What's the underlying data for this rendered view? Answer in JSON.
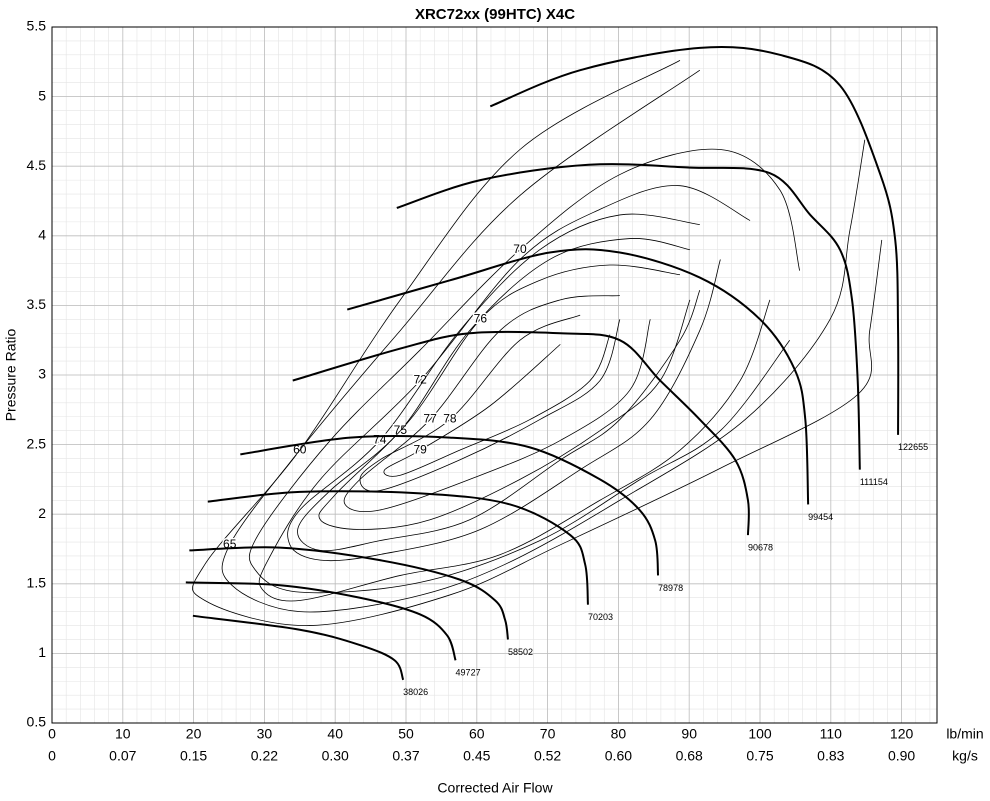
{
  "chart_data": {
    "type": "line",
    "title": "XRC72xx (99HTC) X4C",
    "x_label": "Corrected Air Flow",
    "y_label": "Pressure Ratio",
    "x_unit": "lb/min",
    "x2_unit": "kg/s",
    "xlim": [
      0,
      125
    ],
    "ylim": [
      0.5,
      5.5
    ],
    "xticks": [
      0,
      10,
      20,
      30,
      40,
      50,
      60,
      70,
      80,
      90,
      100,
      110,
      120
    ],
    "x2ticks": [
      0,
      0.07,
      0.15,
      0.22,
      {
        "value": 0.3,
        "label": "0.30"
      },
      0.37,
      0.45,
      0.52,
      {
        "value": 0.6,
        "label": "0.60"
      },
      0.68,
      0.75,
      0.83,
      {
        "value": 0.9,
        "label": "0.90"
      }
    ],
    "yticks": [
      0.5,
      1,
      1.5,
      2,
      2.5,
      3,
      3.5,
      4,
      4.5,
      5,
      5.5
    ],
    "grid": true,
    "minor_step": {
      "x": 2,
      "y": 0.1
    },
    "speed_line_width": 2,
    "contour_line_width": 0.8,
    "color": "#000000",
    "speed_lines": [
      {
        "name": "38026",
        "x": [
          19.9,
          35,
          43.5,
          48.4,
          49.6
        ],
        "y": [
          1.27,
          1.17,
          1.06,
          0.95,
          0.81
        ]
      },
      {
        "name": "49727",
        "x": [
          18.9,
          32.2,
          43.5,
          52,
          55.8,
          57
        ],
        "y": [
          1.51,
          1.49,
          1.4,
          1.28,
          1.13,
          0.95
        ]
      },
      {
        "name": "58502",
        "x": [
          19.4,
          32.2,
          46.3,
          57.6,
          62.6,
          64,
          64.4
        ],
        "y": [
          1.74,
          1.76,
          1.67,
          1.53,
          1.38,
          1.24,
          1.1
        ]
      },
      {
        "name": "70203",
        "x": [
          22,
          35,
          52,
          64.7,
          73.2,
          75.3,
          75.7
        ],
        "y": [
          2.09,
          2.16,
          2.15,
          2.07,
          1.85,
          1.64,
          1.35
        ]
      },
      {
        "name": "78978",
        "x": [
          26.6,
          42.1,
          56.2,
          67.5,
          77.4,
          83,
          85.2,
          85.6
        ],
        "y": [
          2.43,
          2.55,
          2.55,
          2.48,
          2.25,
          2.03,
          1.81,
          1.56
        ]
      },
      {
        "name": "90678",
        "x": [
          34,
          49.2,
          59,
          71.8,
          80.2,
          85.9,
          91.5,
          96.5,
          98.3,
          98.3
        ],
        "y": [
          2.96,
          3.19,
          3.3,
          3.3,
          3.25,
          2.96,
          2.68,
          2.39,
          2.1,
          1.85
        ]
      },
      {
        "name": "99454",
        "x": [
          41.7,
          56.2,
          70.3,
          80.2,
          91.5,
          100,
          104.9,
          106.4,
          106.8
        ],
        "y": [
          3.47,
          3.68,
          3.88,
          3.88,
          3.7,
          3.4,
          3.04,
          2.68,
          2.07
        ]
      },
      {
        "name": "111154",
        "x": [
          48.7,
          60.5,
          75.8,
          90.1,
          101.4,
          107.1,
          111.3,
          113,
          113.8,
          114.1
        ],
        "y": [
          4.2,
          4.4,
          4.51,
          4.49,
          4.45,
          4.15,
          3.9,
          3.54,
          2.96,
          2.32
        ]
      },
      {
        "name": "122655",
        "x": [
          61.9,
          74.6,
          91.5,
          102.8,
          111.3,
          117,
          119.1,
          119.5,
          119.5
        ],
        "y": [
          4.93,
          5.19,
          5.35,
          5.3,
          5.08,
          4.44,
          3.97,
          3.32,
          2.57
        ]
      }
    ],
    "efficiency_contours": [
      {
        "name": "60",
        "x": [
          117.2,
          115.5,
          113.8,
          94.4,
          71.8,
          56.2,
          36.4,
          21.6,
          21.6,
          35,
          49.2,
          66.1,
          88.7
        ],
        "y": [
          3.97,
          3.32,
          2.86,
          2.33,
          1.78,
          1.42,
          1.2,
          1.38,
          1.64,
          2.46,
          3.54,
          4.62,
          5.26
        ]
      },
      {
        "name": "65",
        "x": [
          114.8,
          112.7,
          109.9,
          97.9,
          80.2,
          64,
          50.6,
          35,
          25.4,
          25.1,
          35,
          49.2,
          66.1,
          91.5
        ],
        "y": [
          4.69,
          4.04,
          3.4,
          2.68,
          2.1,
          1.64,
          1.4,
          1.3,
          1.49,
          1.78,
          2.46,
          3.32,
          4.29,
          5.19
        ]
      },
      {
        "name": "70",
        "x": [
          104.2,
          94.4,
          83.1,
          68.9,
          52,
          35,
          28.7,
          29.1,
          39.3,
          52,
          66.1,
          80.2,
          94.4,
          102.8,
          105.6
        ],
        "y": [
          3.25,
          2.6,
          2.25,
          1.81,
          1.51,
          1.44,
          1.6,
          1.85,
          2.53,
          3.18,
          3.9,
          4.44,
          4.62,
          4.33,
          3.75
        ]
      },
      {
        "name": "72",
        "x": [
          101.4,
          97.2,
          88.7,
          77.4,
          63.3,
          49.2,
          35,
          29.7,
          30.5,
          37.9,
          52,
          66.1,
          77.4,
          88.7,
          98.6
        ],
        "y": [
          3.54,
          2.96,
          2.46,
          2.1,
          1.71,
          1.56,
          1.38,
          1.46,
          1.67,
          2.25,
          2.96,
          3.83,
          4.19,
          4.36,
          4.11
        ]
      },
      {
        "name": "74",
        "x": [
          94.4,
          91.5,
          84.5,
          74.6,
          60.5,
          46.3,
          37.9,
          33.6,
          35,
          46.3,
          57.6,
          68.9,
          80.2,
          91.5
        ],
        "y": [
          3.83,
          3.32,
          2.68,
          2.32,
          1.89,
          1.71,
          1.67,
          1.78,
          2.03,
          2.53,
          3.32,
          3.9,
          4.15,
          4.08
        ]
      },
      {
        "name": "75",
        "x": [
          91.5,
          88.7,
          80.2,
          71.8,
          59,
          46.3,
          37.9,
          34.7,
          39.3,
          49.2,
          59,
          70.3,
          81.6,
          90.1
        ],
        "y": [
          3.61,
          3.25,
          2.68,
          2.39,
          1.96,
          1.81,
          1.74,
          1.89,
          2.17,
          2.6,
          3.32,
          3.83,
          3.98,
          3.9
        ]
      },
      {
        "name": "76",
        "x": [
          90.1,
          85.9,
          77.4,
          66.1,
          53.4,
          43.5,
          37.9,
          40,
          50.6,
          60.5,
          68.9,
          78.8,
          88.7
        ],
        "y": [
          3.54,
          2.96,
          2.6,
          2.25,
          1.96,
          1.89,
          1.96,
          2.14,
          2.68,
          3.4,
          3.68,
          3.79,
          3.72
        ]
      },
      {
        "name": "77",
        "x": [
          84.5,
          81.6,
          71.8,
          59,
          46.3,
          41.4,
          43.5,
          53.4,
          63.3,
          71.8,
          80.2
        ],
        "y": [
          3.4,
          2.89,
          2.53,
          2.25,
          2.03,
          2.07,
          2.25,
          2.68,
          3.32,
          3.54,
          3.57
        ]
      },
      {
        "name": "78",
        "x": [
          80.2,
          77.4,
          68.9,
          57.6,
          46.3,
          43.5,
          46.3,
          56.2,
          66.1,
          74.6
        ],
        "y": [
          3.4,
          2.96,
          2.68,
          2.39,
          2.17,
          2.25,
          2.39,
          2.68,
          3.25,
          3.43
        ]
      },
      {
        "name": "79",
        "x": [
          78.8,
          76,
          67.5,
          57.6,
          49.2,
          47,
          52,
          61.9,
          71.8
        ],
        "y": [
          3.29,
          2.96,
          2.68,
          2.46,
          2.28,
          2.32,
          2.46,
          2.78,
          3.22
        ]
      }
    ]
  }
}
